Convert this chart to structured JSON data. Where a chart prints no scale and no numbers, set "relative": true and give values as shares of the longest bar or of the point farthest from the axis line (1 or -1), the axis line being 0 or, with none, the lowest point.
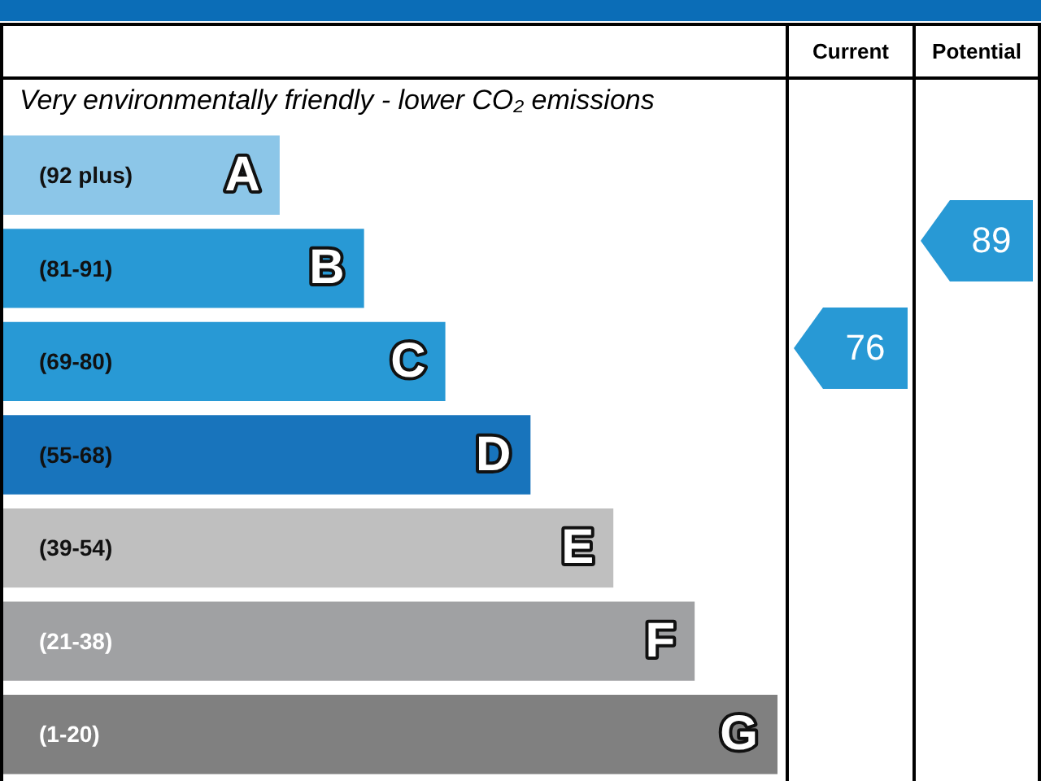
{
  "chart_data": {
    "type": "bar",
    "orientation": "horizontal",
    "relative": true,
    "subtitle": "Very environmentally friendly - lower CO₂ emissions",
    "categories": [
      "(92 plus)",
      "(81-91)",
      "(69-80)",
      "(55-68)",
      "(39-54)",
      "(21-38)",
      "(1-20)"
    ],
    "values": [
      0.357,
      0.466,
      0.571,
      0.681,
      0.788,
      0.893,
      1
    ],
    "colors": [
      "#8cc6e8",
      "#2899d5",
      "#2899d5",
      "#1874bc",
      "#bfbfbf",
      "#a0a1a3",
      "#808080"
    ],
    "annotations": [
      "Current",
      "Potential",
      {
        "text": "A",
        "y": "(92 plus)"
      },
      {
        "text": "B",
        "y": "(81-91)"
      },
      {
        "text": "C",
        "y": "(69-80)"
      },
      {
        "text": "D",
        "y": "(55-68)"
      },
      {
        "text": "E",
        "y": "(39-54)"
      },
      {
        "text": "F",
        "y": "(21-38)"
      },
      {
        "text": "G",
        "y": "(1-20)"
      },
      "76",
      "89"
    ]
  }
}
